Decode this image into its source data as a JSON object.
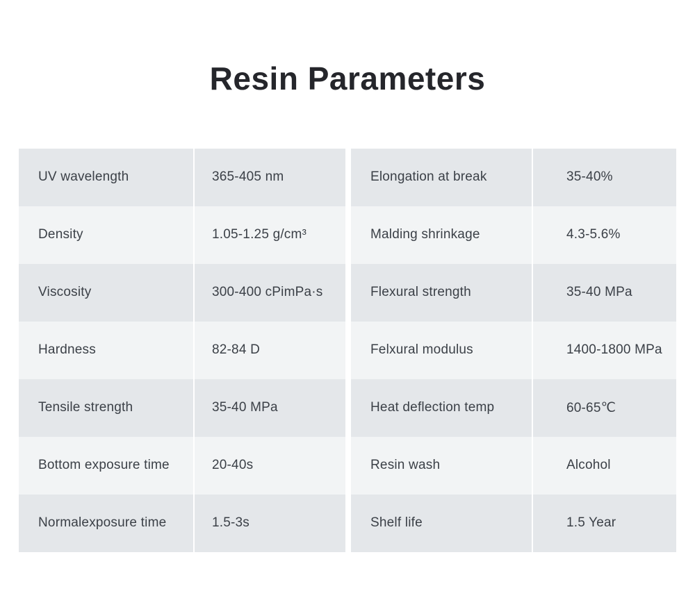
{
  "page": {
    "title": "Resin Parameters"
  },
  "colors": {
    "background": "#ffffff",
    "row_dark": "#e4e7ea",
    "row_light": "#f2f4f5",
    "divider": "#ffffff",
    "text": "#3b4047",
    "title_text": "#25262b"
  },
  "tables": [
    {
      "rows": [
        {
          "name": "UV wavelength",
          "value": "365-405 nm"
        },
        {
          "name": "Density",
          "value": "1.05-1.25 g/cm³"
        },
        {
          "name": "Viscosity",
          "value": "300-400 cPimPa·s"
        },
        {
          "name": "Hardness",
          "value": "82-84 D"
        },
        {
          "name": "Tensile strength",
          "value": "35-40 MPa"
        },
        {
          "name": "Bottom exposure time",
          "value": "20-40s"
        },
        {
          "name": "Normalexposure time",
          "value": "1.5-3s"
        }
      ]
    },
    {
      "rows": [
        {
          "name": "Elongation at break",
          "value": "35-40%"
        },
        {
          "name": "Malding shrinkage",
          "value": "4.3-5.6%"
        },
        {
          "name": "Flexural strength",
          "value": "35-40 MPa"
        },
        {
          "name": "Felxural modulus",
          "value": "1400-1800 MPa"
        },
        {
          "name": "Heat deflection temp",
          "value": "60-65℃"
        },
        {
          "name": "Resin wash",
          "value": "Alcohol"
        },
        {
          "name": "Shelf life",
          "value": "1.5 Year"
        }
      ]
    }
  ]
}
